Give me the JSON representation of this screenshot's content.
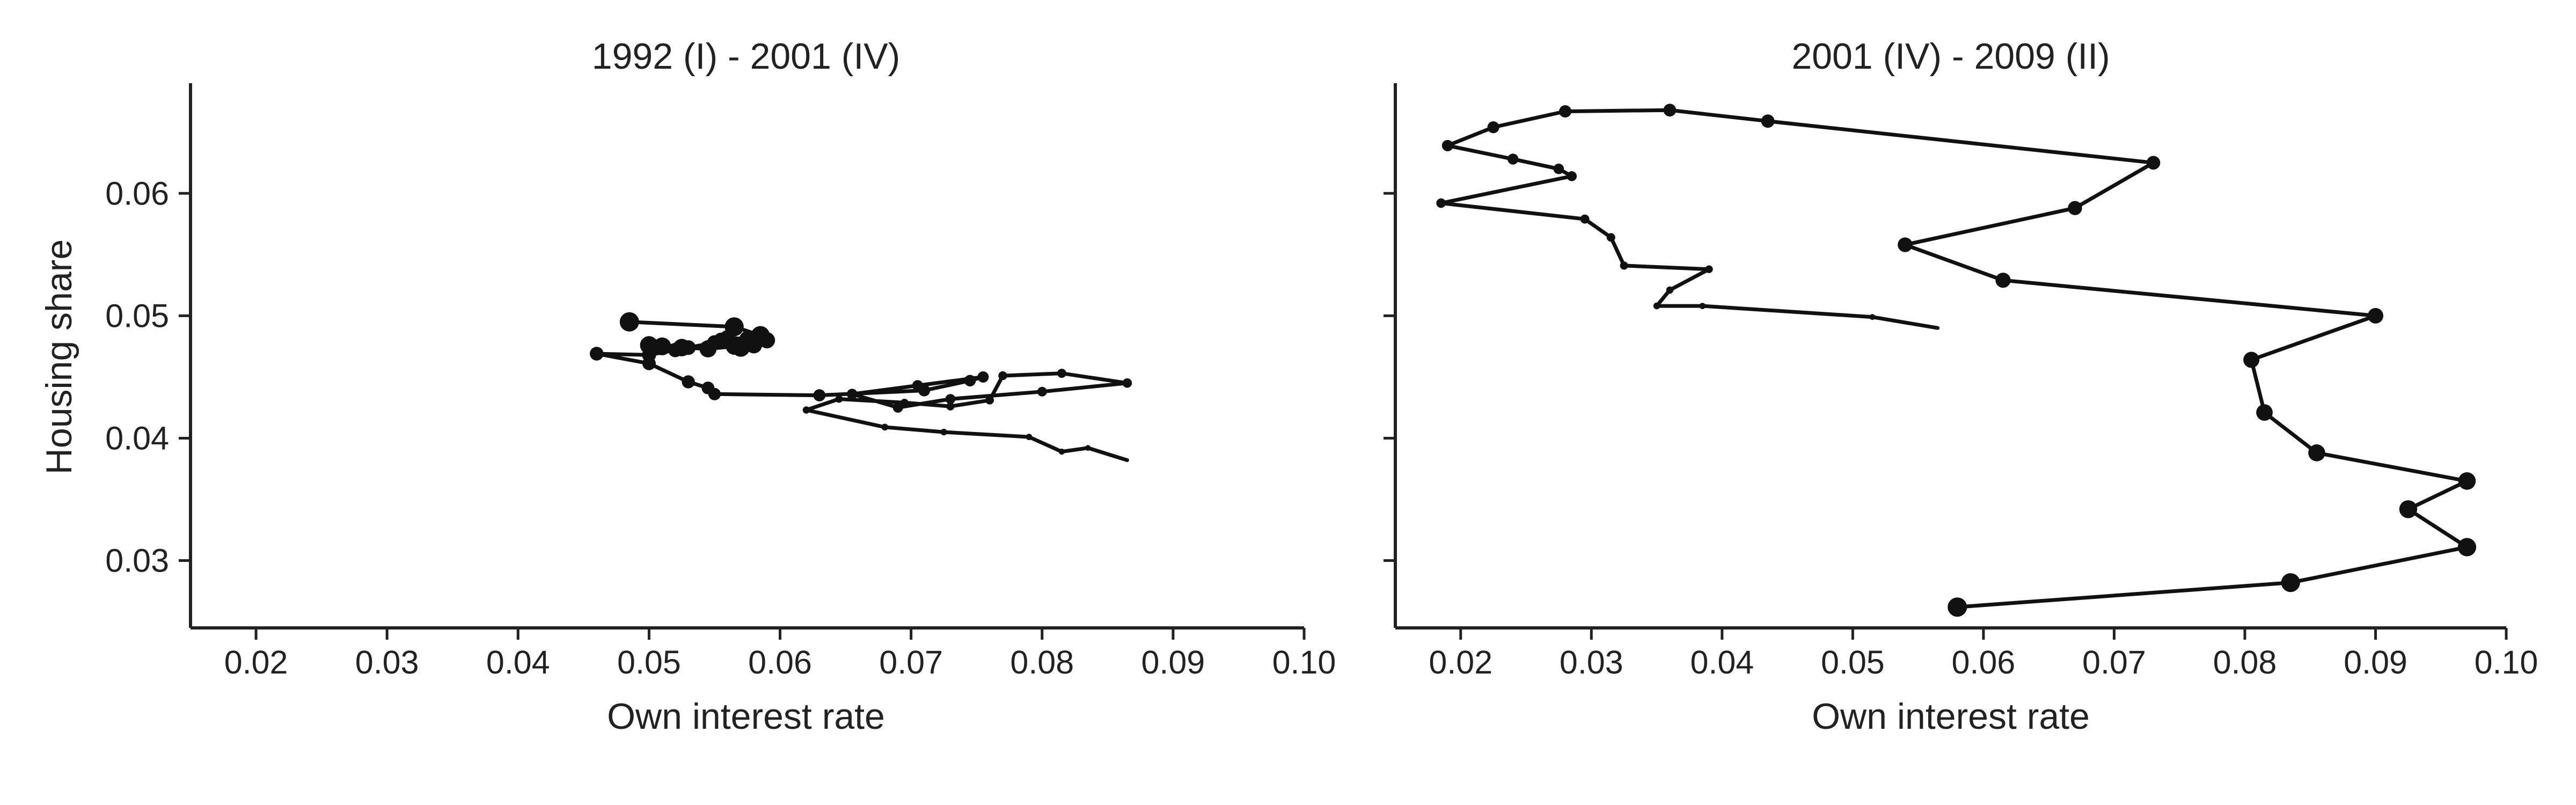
{
  "colors": {
    "line": "#111111",
    "axis": "#222222",
    "background": "#ffffff"
  },
  "chart_data": [
    {
      "type": "line",
      "title": "1992 (I) - 2001 (IV)",
      "xlabel": "Own interest rate",
      "ylabel": "Housing share",
      "xlim": [
        0.015,
        0.1
      ],
      "ylim": [
        0.0245,
        0.069
      ],
      "xticks": [
        "0.02",
        "0.03",
        "0.04",
        "0.05",
        "0.06",
        "0.07",
        "0.08",
        "0.09",
        "0.10"
      ],
      "yticks": [
        "0.03",
        "0.04",
        "0.05",
        "0.06"
      ],
      "grid": false,
      "marker_size_increases_with_time": true,
      "x": [
        0.0865,
        0.0835,
        0.0815,
        0.079,
        0.0725,
        0.068,
        0.062,
        0.0645,
        0.0695,
        0.073,
        0.076,
        0.077,
        0.0815,
        0.0865,
        0.08,
        0.073,
        0.069,
        0.0655,
        0.0705,
        0.0755,
        0.0745,
        0.071,
        0.063,
        0.055,
        0.0545,
        0.053,
        0.05,
        0.046,
        0.05,
        0.052,
        0.053,
        0.055,
        0.0555,
        0.056,
        0.0575,
        0.059,
        0.058,
        0.0565,
        0.0545,
        0.0525,
        0.051,
        0.05,
        0.057,
        0.0585,
        0.0565,
        0.0485
      ],
      "y": [
        0.0382,
        0.0392,
        0.0389,
        0.0401,
        0.0405,
        0.0409,
        0.0423,
        0.0432,
        0.0429,
        0.0426,
        0.0431,
        0.0451,
        0.0453,
        0.0445,
        0.0438,
        0.0432,
        0.0425,
        0.0436,
        0.0443,
        0.045,
        0.0447,
        0.0439,
        0.0435,
        0.0436,
        0.0441,
        0.0446,
        0.0461,
        0.0469,
        0.0468,
        0.0472,
        0.0474,
        0.0478,
        0.048,
        0.0482,
        0.0481,
        0.048,
        0.0476,
        0.0475,
        0.0473,
        0.0474,
        0.0475,
        0.0476,
        0.0474,
        0.0484,
        0.0491,
        0.0495
      ]
    },
    {
      "type": "line",
      "title": "2001 (IV) - 2009 (II)",
      "xlabel": "Own interest rate",
      "ylabel": "",
      "xlim": [
        0.015,
        0.1
      ],
      "ylim": [
        0.0245,
        0.069
      ],
      "xticks": [
        "0.02",
        "0.03",
        "0.04",
        "0.05",
        "0.06",
        "0.07",
        "0.08",
        "0.09",
        "0.10"
      ],
      "yticks": [
        "0.03",
        "0.04",
        "0.05",
        "0.06"
      ],
      "grid": false,
      "marker_size_increases_with_time": true,
      "x": [
        0.0565,
        0.0515,
        0.0385,
        0.035,
        0.036,
        0.039,
        0.0325,
        0.0315,
        0.0295,
        0.0185,
        0.0285,
        0.0275,
        0.024,
        0.019,
        0.0225,
        0.028,
        0.036,
        0.0435,
        0.073,
        0.067,
        0.054,
        0.0615,
        0.09,
        0.0805,
        0.0815,
        0.0855,
        0.097,
        0.0925,
        0.097,
        0.0835,
        0.058
      ],
      "y": [
        0.049,
        0.0499,
        0.0508,
        0.0508,
        0.0521,
        0.0538,
        0.0541,
        0.0564,
        0.0579,
        0.0592,
        0.0614,
        0.062,
        0.0628,
        0.0639,
        0.0654,
        0.0667,
        0.0668,
        0.0659,
        0.0625,
        0.0588,
        0.0558,
        0.0529,
        0.05,
        0.0464,
        0.0421,
        0.0388,
        0.0365,
        0.0342,
        0.0311,
        0.0282,
        0.0262
      ]
    }
  ]
}
